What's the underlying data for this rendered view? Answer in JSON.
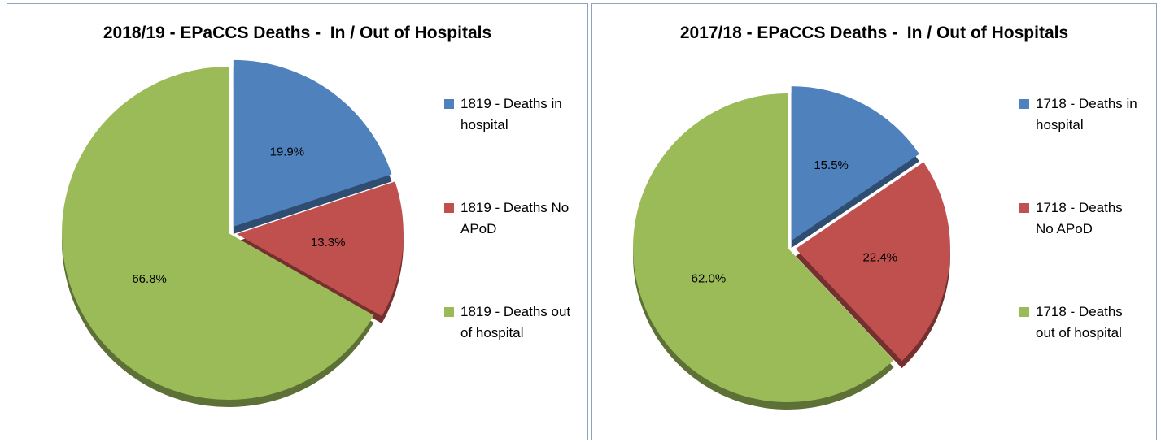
{
  "chart_data": [
    {
      "type": "pie",
      "title": "2018/19 - EPaCCS Deaths -  In / Out of Hospitals",
      "categories": [
        "1819 - Deaths in hospital",
        "1819 - Deaths No APoD",
        "1819 - Deaths out of hospital"
      ],
      "values": [
        19.9,
        13.3,
        66.8
      ],
      "value_labels": [
        "19.9%",
        "13.3%",
        "66.8%"
      ],
      "colors": [
        "#4f81bd",
        "#c0504d",
        "#9bbb59"
      ]
    },
    {
      "type": "pie",
      "title": "2017/18 - EPaCCS Deaths -  In / Out of Hospitals",
      "categories": [
        "1718 - Deaths in hospital",
        "1718 - Deaths No APoD",
        "1718 - Deaths out of hospital"
      ],
      "values": [
        15.5,
        22.4,
        62.0
      ],
      "value_labels": [
        "15.5%",
        "22.4%",
        "62.0%"
      ],
      "colors": [
        "#4f81bd",
        "#c0504d",
        "#9bbb59"
      ]
    }
  ]
}
